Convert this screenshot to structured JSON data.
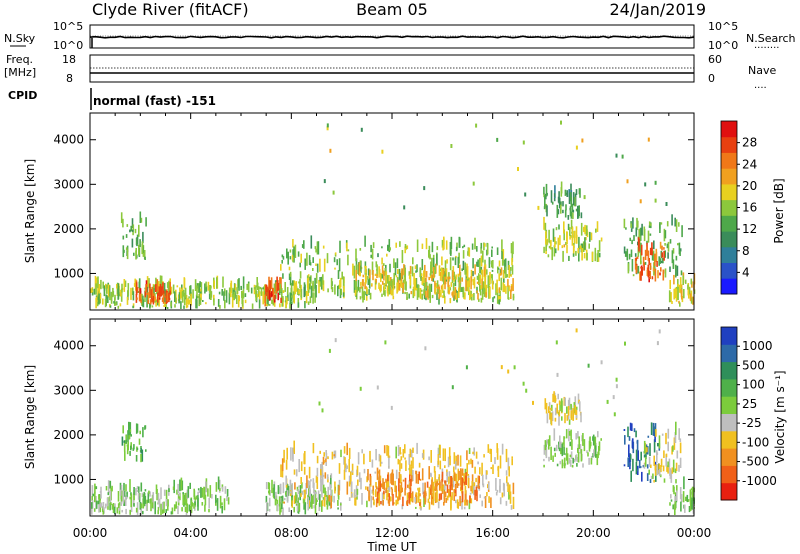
{
  "header": {
    "station": "Clyde River (fitACF)",
    "beam": "Beam 05",
    "date": "24/Jan/2019"
  },
  "noise_panel": {
    "left_label": "N.Sky",
    "left_ticks": [
      "10^5",
      "10^0"
    ],
    "right_label": "N.Search",
    "right_ticks": [
      "10^5",
      "10^0"
    ],
    "right_legend_marker": "........"
  },
  "freq_panel": {
    "left_label_1": "Freq.",
    "left_label_2": "[MHz]",
    "left_ticks": [
      "18",
      "8"
    ],
    "right_label": "Nave",
    "right_ticks": [
      "60",
      "0"
    ],
    "right_legend_marker": "....",
    "cpid_label": "CPID",
    "cpid_text": "normal (fast) -151"
  },
  "x_axis": {
    "label": "Time UT",
    "ticks": [
      "00:00",
      "04:00",
      "08:00",
      "12:00",
      "16:00",
      "20:00",
      "00:00"
    ]
  },
  "chart_data": [
    {
      "type": "heatmap",
      "name": "power",
      "ylabel": "Slant Range [km]",
      "yticks": [
        "1000",
        "2000",
        "3000",
        "4000"
      ],
      "ylim": [
        180,
        4600
      ],
      "x_hours": [
        0,
        24
      ],
      "colorbar": {
        "label": "Power [dB]",
        "ticks": [
          "4",
          "8",
          "12",
          "16",
          "20",
          "24",
          "28"
        ],
        "range": [
          0,
          32
        ],
        "colors": [
          "#1a1aff",
          "#2a52c8",
          "#2f7f9a",
          "#3a8c5a",
          "#4ea84a",
          "#8cc83c",
          "#e8d020",
          "#f0a020",
          "#f07818",
          "#e84010",
          "#e01010"
        ]
      },
      "regions": [
        {
          "t": [
            0.0,
            9.0
          ],
          "r": [
            200,
            700
          ],
          "v": 16
        },
        {
          "t": [
            1.8,
            3.2
          ],
          "r": [
            300,
            600
          ],
          "v": 26
        },
        {
          "t": [
            6.9,
            7.6
          ],
          "r": [
            250,
            700
          ],
          "v": 27
        },
        {
          "t": [
            1.2,
            2.2
          ],
          "r": [
            1300,
            2150
          ],
          "v": 14
        },
        {
          "t": [
            7.5,
            16.8
          ],
          "r": [
            300,
            1600
          ],
          "v": 15
        },
        {
          "t": [
            10.5,
            16.8
          ],
          "r": [
            400,
            1000
          ],
          "v": 19
        },
        {
          "t": [
            18.0,
            19.5
          ],
          "r": [
            2200,
            2800
          ],
          "v": 12
        },
        {
          "t": [
            18.0,
            20.3
          ],
          "r": [
            1250,
            2000
          ],
          "v": 17
        },
        {
          "t": [
            21.2,
            23.5
          ],
          "r": [
            900,
            2100
          ],
          "v": 14
        },
        {
          "t": [
            21.6,
            22.8
          ],
          "r": [
            800,
            1600
          ],
          "v": 26
        },
        {
          "t": [
            23.0,
            24.0
          ],
          "r": [
            200,
            800
          ],
          "v": 18
        }
      ]
    },
    {
      "type": "heatmap",
      "name": "velocity",
      "ylabel": "Slant Range [km]",
      "yticks": [
        "1000",
        "2000",
        "3000",
        "4000"
      ],
      "ylim": [
        180,
        4600
      ],
      "x_hours": [
        0,
        24
      ],
      "colorbar": {
        "label": "Velocity [m s⁻¹]",
        "ticks": [
          "1000",
          "500",
          "100",
          "25",
          "-25",
          "-100",
          "-500",
          "-1000"
        ],
        "range": [
          -1200,
          1200
        ],
        "colors": [
          "#2040c0",
          "#2d6aa8",
          "#2f8f5a",
          "#4fb04a",
          "#7ccc3c",
          "#bebebe",
          "#f0c020",
          "#f09020",
          "#f06018",
          "#e82010"
        ]
      },
      "regions": [
        {
          "t": [
            0.0,
            5.5
          ],
          "r": [
            200,
            800
          ],
          "v": 120
        },
        {
          "t": [
            1.2,
            2.2
          ],
          "r": [
            1300,
            2150
          ],
          "v": 300
        },
        {
          "t": [
            6.9,
            10.0
          ],
          "r": [
            200,
            800
          ],
          "v": 80
        },
        {
          "t": [
            7.5,
            16.8
          ],
          "r": [
            300,
            1600
          ],
          "v": -250
        },
        {
          "t": [
            11.0,
            15.5
          ],
          "r": [
            400,
            1000
          ],
          "v": -600
        },
        {
          "t": [
            18.0,
            19.5
          ],
          "r": [
            2200,
            2800
          ],
          "v": -200
        },
        {
          "t": [
            18.0,
            20.3
          ],
          "r": [
            1250,
            2000
          ],
          "v": 60
        },
        {
          "t": [
            21.2,
            22.6
          ],
          "r": [
            900,
            2100
          ],
          "v": 800
        },
        {
          "t": [
            22.0,
            23.5
          ],
          "r": [
            900,
            2000
          ],
          "v": -150
        },
        {
          "t": [
            23.0,
            24.0
          ],
          "r": [
            200,
            800
          ],
          "v": 120
        }
      ]
    }
  ]
}
